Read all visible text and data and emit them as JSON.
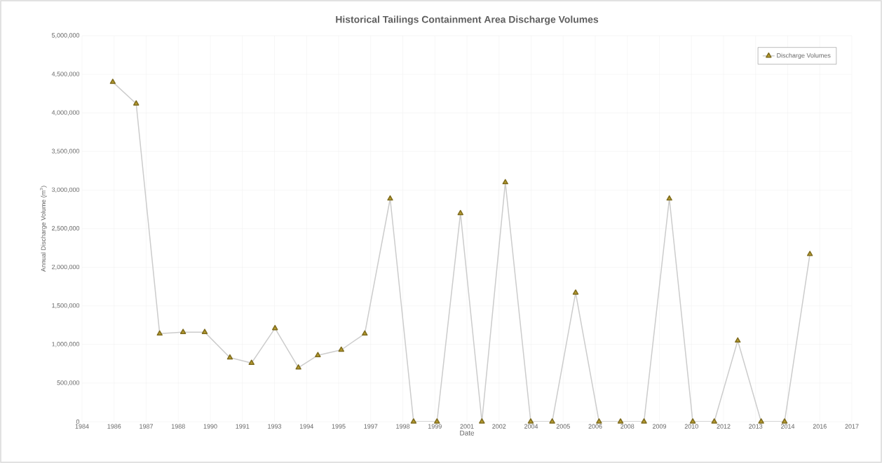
{
  "chart_data": {
    "type": "line",
    "title": "Historical Tailings Containment Area Discharge Volumes",
    "xlabel": "Date",
    "ylabel": "Annual Discharge Volume (m$^{3}$)",
    "x": [
      "1986-03",
      "1987-03",
      "1988-03",
      "1989-03",
      "1990-02",
      "1991-03",
      "1992-02",
      "1993-02",
      "1994-02",
      "1994-12",
      "1995-12",
      "1996-12",
      "1998-01",
      "1999-01",
      "2000-01",
      "2001-01",
      "2001-12",
      "2002-12",
      "2004-01",
      "2004-12",
      "2005-12",
      "2006-12",
      "2007-11",
      "2008-11",
      "2009-12",
      "2010-12",
      "2011-11",
      "2012-11",
      "2013-11",
      "2014-11",
      "2015-12"
    ],
    "series": [
      {
        "name": "Discharge Volumes",
        "color": "#b59a2c",
        "values": [
          4400000,
          4120000,
          1140000,
          1160000,
          1160000,
          830000,
          760000,
          1210000,
          700000,
          860000,
          930000,
          1140000,
          2890000,
          0,
          0,
          2700000,
          0,
          3100000,
          0,
          0,
          1670000,
          0,
          0,
          0,
          2890000,
          0,
          0,
          1050000,
          0,
          0,
          2170000
        ]
      }
    ],
    "xlim": [
      "1984-11-07",
      "2017-09-15"
    ],
    "xticks": [
      {
        "value": "1984-11-07",
        "label": "1984"
      },
      {
        "value": "1986-03-22",
        "label": "1986"
      },
      {
        "value": "1987-08-04",
        "label": "1987"
      },
      {
        "value": "1988-12-16",
        "label": "1988"
      },
      {
        "value": "1990-04-30",
        "label": "1990"
      },
      {
        "value": "1991-09-12",
        "label": "1991"
      },
      {
        "value": "1993-01-24",
        "label": "1993"
      },
      {
        "value": "1994-06-08",
        "label": "1994"
      },
      {
        "value": "1995-10-21",
        "label": "1995"
      },
      {
        "value": "1997-03-04",
        "label": "1997"
      },
      {
        "value": "1998-07-17",
        "label": "1998"
      },
      {
        "value": "1999-11-29",
        "label": "1999"
      },
      {
        "value": "2001-04-12",
        "label": "2001"
      },
      {
        "value": "2002-08-25",
        "label": "2002"
      },
      {
        "value": "2004-01-07",
        "label": "2004"
      },
      {
        "value": "2005-05-21",
        "label": "2005"
      },
      {
        "value": "2006-10-03",
        "label": "2006"
      },
      {
        "value": "2008-02-15",
        "label": "2008"
      },
      {
        "value": "2009-06-29",
        "label": "2009"
      },
      {
        "value": "2010-11-11",
        "label": "2010"
      },
      {
        "value": "2012-03-25",
        "label": "2012"
      },
      {
        "value": "2013-08-07",
        "label": "2013"
      },
      {
        "value": "2014-12-20",
        "label": "2014"
      },
      {
        "value": "2016-05-03",
        "label": "2016"
      },
      {
        "value": "2017-09-15",
        "label": "2017"
      }
    ],
    "ylim": [
      0,
      5000000
    ],
    "yticks": [
      0,
      {
        "value": 500000,
        "label": "500,000"
      },
      {
        "value": 1000000,
        "label": "1,000,000"
      },
      {
        "value": 1500000,
        "label": "1,500,000"
      },
      {
        "value": 2000000,
        "label": "2,000,000"
      },
      {
        "value": 2500000,
        "label": "2,500,000"
      },
      {
        "value": 3000000,
        "label": "3,000,000"
      },
      {
        "value": 3500000,
        "label": "3,500,000"
      },
      {
        "value": 4000000,
        "label": "4,000,000"
      },
      {
        "value": 4500000,
        "label": "4,500,000"
      },
      {
        "value": 5000000,
        "label": "5,000,000"
      }
    ],
    "grid": true,
    "legend": "top right",
    "marker": "triangle",
    "line_style": "solid"
  }
}
